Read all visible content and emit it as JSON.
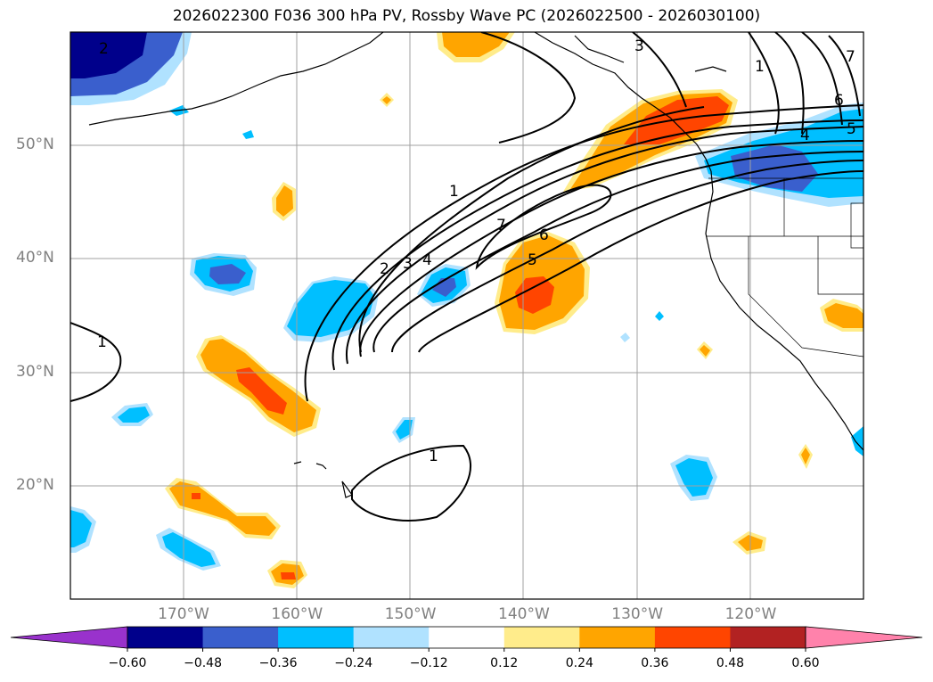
{
  "title": "2026022300 F036 300 hPa PV, Rossby Wave PC (2026022500 - 2026030100)",
  "lat_labels": [
    {
      "lat": 50,
      "text": "50°N"
    },
    {
      "lat": 40,
      "text": "40°N"
    },
    {
      "lat": 30,
      "text": "30°N"
    },
    {
      "lat": 20,
      "text": "20°N"
    }
  ],
  "lon_labels": [
    {
      "lon": -170,
      "text": "170°W"
    },
    {
      "lon": -160,
      "text": "160°W"
    },
    {
      "lon": -150,
      "text": "150°W"
    },
    {
      "lon": -140,
      "text": "140°W"
    },
    {
      "lon": -130,
      "text": "130°W"
    },
    {
      "lon": -120,
      "text": "120°W"
    }
  ],
  "colorbar": {
    "ticks": [
      "−0.60",
      "−0.48",
      "−0.36",
      "−0.24",
      "−0.12",
      "0.12",
      "0.24",
      "0.36",
      "0.48",
      "0.60"
    ],
    "colors": [
      "#9932cc",
      "#00008b",
      "#3a5fcd",
      "#00bfff",
      "#b0e2ff",
      "#ffffff",
      "#ffec8b",
      "#ffa500",
      "#ff4500",
      "#b22222",
      "#ff82ab"
    ]
  },
  "contour_labels": [
    "1",
    "2",
    "3",
    "4",
    "5",
    "6",
    "7"
  ]
}
